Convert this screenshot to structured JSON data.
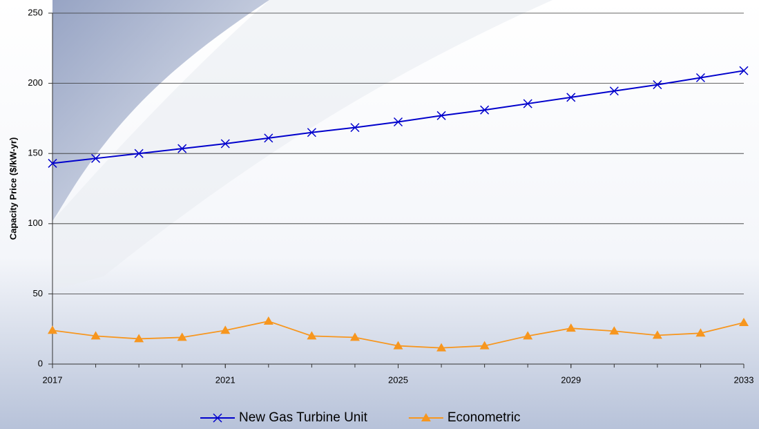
{
  "chart_data": {
    "type": "line",
    "y_label": "Capacity Price ($/kW-yr)",
    "x": [
      2017,
      2018,
      2019,
      2020,
      2021,
      2022,
      2023,
      2024,
      2025,
      2026,
      2027,
      2028,
      2029,
      2030,
      2031,
      2032,
      2033
    ],
    "series": [
      {
        "name": "New Gas Turbine Unit",
        "color": "#0000cc",
        "marker": "x",
        "values": [
          143,
          146.5,
          150,
          153.5,
          157,
          161,
          165,
          168.5,
          172.5,
          177,
          181,
          185.5,
          190,
          194.5,
          199,
          204,
          209
        ]
      },
      {
        "name": "Econometric",
        "color": "#f7961e",
        "marker": "triangle",
        "values": [
          24,
          20,
          18,
          19,
          24,
          30.5,
          20,
          19,
          13,
          11.5,
          13,
          20,
          25.5,
          23.5,
          20.5,
          22,
          29.5
        ]
      }
    ],
    "xlim": [
      2017,
      2033
    ],
    "xticks": [
      2017,
      2021,
      2025,
      2029,
      2033
    ],
    "ylim": [
      0,
      250
    ],
    "yticks": [
      0,
      50,
      100,
      150,
      200,
      250
    ],
    "grid": true,
    "legend": "bottom"
  }
}
